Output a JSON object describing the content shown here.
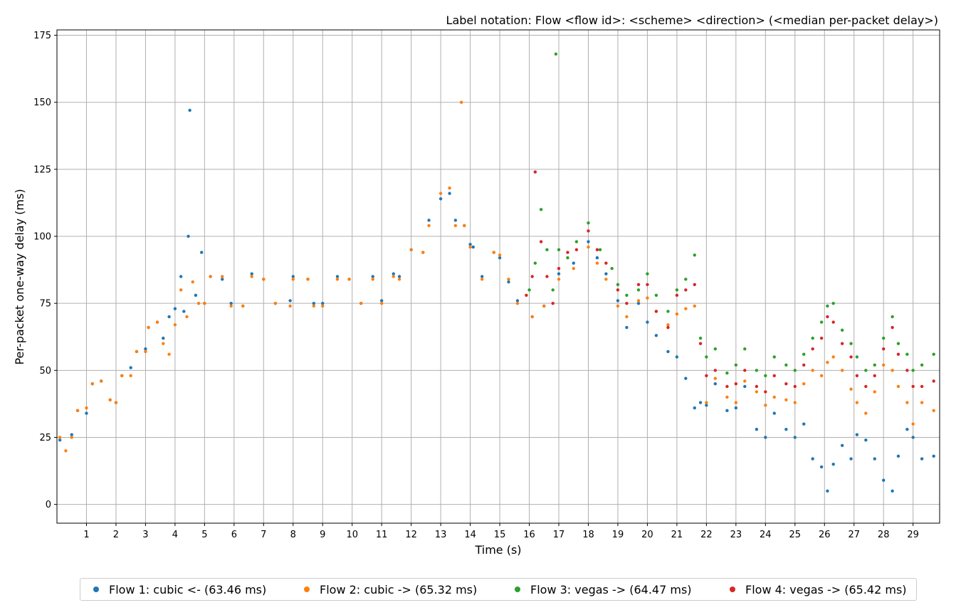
{
  "chart_data": {
    "type": "scatter",
    "title": "Label notation: Flow <flow id>: <scheme> <direction> (<median per-packet delay>)",
    "xlabel": "Time (s)",
    "ylabel": "Per-packet one-way delay (ms)",
    "xlim": [
      0,
      29.9
    ],
    "ylim": [
      -7,
      177
    ],
    "x_ticks": [
      1,
      2,
      3,
      4,
      5,
      6,
      7,
      8,
      9,
      10,
      11,
      12,
      13,
      14,
      15,
      16,
      17,
      18,
      19,
      20,
      21,
      22,
      23,
      24,
      25,
      26,
      27,
      28,
      29
    ],
    "y_ticks": [
      0,
      25,
      50,
      75,
      100,
      125,
      150,
      175
    ],
    "grid": true,
    "legend_position": "bottom",
    "series": [
      {
        "name": "Flow 1: cubic <- (63.46 ms)",
        "color": "#1f77b4",
        "points": [
          [
            0.1,
            24
          ],
          [
            0.5,
            26
          ],
          [
            0.7,
            35
          ],
          [
            1.0,
            34
          ],
          [
            1.2,
            45
          ],
          [
            1.5,
            46
          ],
          [
            1.8,
            39
          ],
          [
            2.0,
            38
          ],
          [
            2.2,
            48
          ],
          [
            2.5,
            51
          ],
          [
            2.7,
            57
          ],
          [
            3.0,
            58
          ],
          [
            3.1,
            66
          ],
          [
            3.4,
            68
          ],
          [
            3.6,
            62
          ],
          [
            3.8,
            70
          ],
          [
            4.0,
            73
          ],
          [
            4.2,
            85
          ],
          [
            4.3,
            72
          ],
          [
            4.45,
            100
          ],
          [
            4.5,
            147
          ],
          [
            4.7,
            78
          ],
          [
            4.9,
            94
          ],
          [
            5.0,
            75
          ],
          [
            5.2,
            85
          ],
          [
            5.6,
            84
          ],
          [
            5.9,
            75
          ],
          [
            6.3,
            74
          ],
          [
            6.6,
            86
          ],
          [
            7.0,
            84
          ],
          [
            7.4,
            75
          ],
          [
            7.9,
            76
          ],
          [
            8.0,
            85
          ],
          [
            8.5,
            84
          ],
          [
            8.7,
            75
          ],
          [
            9.0,
            75
          ],
          [
            9.5,
            85
          ],
          [
            9.9,
            84
          ],
          [
            10.3,
            75
          ],
          [
            10.7,
            85
          ],
          [
            11.0,
            76
          ],
          [
            11.4,
            86
          ],
          [
            11.6,
            85
          ],
          [
            12.0,
            95
          ],
          [
            12.4,
            94
          ],
          [
            12.6,
            106
          ],
          [
            13.0,
            114
          ],
          [
            13.3,
            116
          ],
          [
            13.5,
            106
          ],
          [
            13.8,
            104
          ],
          [
            14.0,
            97
          ],
          [
            14.1,
            96
          ],
          [
            14.4,
            85
          ],
          [
            14.8,
            94
          ],
          [
            15.0,
            92
          ],
          [
            15.3,
            83
          ],
          [
            15.6,
            76
          ],
          [
            16.1,
            70
          ],
          [
            16.5,
            74
          ],
          [
            17.0,
            86
          ],
          [
            17.5,
            90
          ],
          [
            18.0,
            98
          ],
          [
            18.3,
            92
          ],
          [
            18.6,
            86
          ],
          [
            19.0,
            76
          ],
          [
            19.3,
            66
          ],
          [
            19.7,
            75
          ],
          [
            20.0,
            68
          ],
          [
            20.3,
            63
          ],
          [
            20.7,
            57
          ],
          [
            21.0,
            55
          ],
          [
            21.3,
            47
          ],
          [
            21.6,
            36
          ],
          [
            21.8,
            38
          ],
          [
            22.0,
            37
          ],
          [
            22.3,
            45
          ],
          [
            22.7,
            35
          ],
          [
            23.0,
            36
          ],
          [
            23.3,
            44
          ],
          [
            23.7,
            28
          ],
          [
            24.0,
            25
          ],
          [
            24.3,
            34
          ],
          [
            24.7,
            28
          ],
          [
            25.0,
            25
          ],
          [
            25.3,
            30
          ],
          [
            25.6,
            17
          ],
          [
            25.9,
            14
          ],
          [
            26.1,
            5
          ],
          [
            26.3,
            15
          ],
          [
            26.6,
            22
          ],
          [
            26.9,
            17
          ],
          [
            27.1,
            26
          ],
          [
            27.4,
            24
          ],
          [
            27.7,
            17
          ],
          [
            28.0,
            9
          ],
          [
            28.3,
            5
          ],
          [
            28.5,
            18
          ],
          [
            28.8,
            28
          ],
          [
            29.0,
            25
          ],
          [
            29.3,
            17
          ],
          [
            29.7,
            18
          ]
        ]
      },
      {
        "name": "Flow 2: cubic -> (65.32 ms)",
        "color": "#ff7f0e",
        "points": [
          [
            0.1,
            25
          ],
          [
            0.3,
            20
          ],
          [
            0.5,
            25
          ],
          [
            0.7,
            35
          ],
          [
            1.0,
            36
          ],
          [
            1.2,
            45
          ],
          [
            1.5,
            46
          ],
          [
            1.8,
            39
          ],
          [
            2.0,
            38
          ],
          [
            2.2,
            48
          ],
          [
            2.5,
            48
          ],
          [
            2.7,
            57
          ],
          [
            3.0,
            57
          ],
          [
            3.1,
            66
          ],
          [
            3.4,
            68
          ],
          [
            3.6,
            60
          ],
          [
            3.8,
            56
          ],
          [
            4.0,
            67
          ],
          [
            4.2,
            80
          ],
          [
            4.4,
            70
          ],
          [
            4.6,
            83
          ],
          [
            4.8,
            75
          ],
          [
            5.0,
            75
          ],
          [
            5.2,
            85
          ],
          [
            5.6,
            85
          ],
          [
            5.9,
            74
          ],
          [
            6.3,
            74
          ],
          [
            6.6,
            85
          ],
          [
            7.0,
            84
          ],
          [
            7.4,
            75
          ],
          [
            7.9,
            74
          ],
          [
            8.0,
            84
          ],
          [
            8.5,
            84
          ],
          [
            8.7,
            74
          ],
          [
            9.0,
            74
          ],
          [
            9.5,
            84
          ],
          [
            9.9,
            84
          ],
          [
            10.3,
            75
          ],
          [
            10.7,
            84
          ],
          [
            11.0,
            75
          ],
          [
            11.4,
            85
          ],
          [
            11.6,
            84
          ],
          [
            12.0,
            95
          ],
          [
            12.4,
            94
          ],
          [
            12.6,
            104
          ],
          [
            13.0,
            116
          ],
          [
            13.3,
            118
          ],
          [
            13.5,
            104
          ],
          [
            13.7,
            150
          ],
          [
            13.8,
            104
          ],
          [
            14.0,
            96
          ],
          [
            14.4,
            84
          ],
          [
            14.8,
            94
          ],
          [
            15.0,
            93
          ],
          [
            15.3,
            84
          ],
          [
            15.6,
            75
          ],
          [
            16.1,
            70
          ],
          [
            16.5,
            74
          ],
          [
            17.0,
            84
          ],
          [
            17.5,
            88
          ],
          [
            18.0,
            96
          ],
          [
            18.3,
            90
          ],
          [
            18.6,
            84
          ],
          [
            19.0,
            74
          ],
          [
            19.3,
            70
          ],
          [
            19.7,
            76
          ],
          [
            20.0,
            77
          ],
          [
            20.3,
            72
          ],
          [
            20.7,
            67
          ],
          [
            21.0,
            71
          ],
          [
            21.3,
            73
          ],
          [
            21.6,
            74
          ],
          [
            22.0,
            38
          ],
          [
            22.3,
            47
          ],
          [
            22.7,
            40
          ],
          [
            23.0,
            38
          ],
          [
            23.3,
            46
          ],
          [
            23.7,
            42
          ],
          [
            24.0,
            37
          ],
          [
            24.3,
            40
          ],
          [
            24.7,
            39
          ],
          [
            25.0,
            38
          ],
          [
            25.3,
            45
          ],
          [
            25.6,
            50
          ],
          [
            25.9,
            48
          ],
          [
            26.1,
            53
          ],
          [
            26.3,
            55
          ],
          [
            26.6,
            50
          ],
          [
            26.9,
            43
          ],
          [
            27.1,
            38
          ],
          [
            27.4,
            34
          ],
          [
            27.7,
            42
          ],
          [
            28.0,
            52
          ],
          [
            28.3,
            50
          ],
          [
            28.5,
            44
          ],
          [
            28.8,
            38
          ],
          [
            29.0,
            30
          ],
          [
            29.3,
            38
          ],
          [
            29.7,
            35
          ]
        ]
      },
      {
        "name": "Flow 3: vegas -> (64.47 ms)",
        "color": "#2ca02c",
        "points": [
          [
            16.0,
            80
          ],
          [
            16.2,
            90
          ],
          [
            16.4,
            110
          ],
          [
            16.6,
            95
          ],
          [
            16.8,
            80
          ],
          [
            16.9,
            168
          ],
          [
            17.0,
            95
          ],
          [
            17.3,
            92
          ],
          [
            17.6,
            98
          ],
          [
            18.0,
            105
          ],
          [
            18.4,
            95
          ],
          [
            18.8,
            88
          ],
          [
            19.0,
            82
          ],
          [
            19.3,
            78
          ],
          [
            19.7,
            80
          ],
          [
            20.0,
            86
          ],
          [
            20.3,
            78
          ],
          [
            20.7,
            72
          ],
          [
            21.0,
            80
          ],
          [
            21.3,
            84
          ],
          [
            21.6,
            93
          ],
          [
            21.8,
            62
          ],
          [
            22.0,
            55
          ],
          [
            22.3,
            58
          ],
          [
            22.7,
            49
          ],
          [
            23.0,
            52
          ],
          [
            23.3,
            58
          ],
          [
            23.7,
            50
          ],
          [
            24.0,
            48
          ],
          [
            24.3,
            55
          ],
          [
            24.7,
            52
          ],
          [
            25.0,
            50
          ],
          [
            25.3,
            56
          ],
          [
            25.6,
            62
          ],
          [
            25.9,
            68
          ],
          [
            26.1,
            74
          ],
          [
            26.3,
            75
          ],
          [
            26.6,
            65
          ],
          [
            26.9,
            60
          ],
          [
            27.1,
            55
          ],
          [
            27.4,
            50
          ],
          [
            27.7,
            52
          ],
          [
            28.0,
            62
          ],
          [
            28.3,
            70
          ],
          [
            28.5,
            60
          ],
          [
            28.8,
            56
          ],
          [
            29.0,
            50
          ],
          [
            29.3,
            52
          ],
          [
            29.7,
            56
          ]
        ]
      },
      {
        "name": "Flow 4: vegas -> (65.42 ms)",
        "color": "#d62728",
        "points": [
          [
            15.9,
            78
          ],
          [
            16.1,
            85
          ],
          [
            16.2,
            124
          ],
          [
            16.4,
            98
          ],
          [
            16.6,
            85
          ],
          [
            16.8,
            75
          ],
          [
            17.0,
            88
          ],
          [
            17.3,
            94
          ],
          [
            17.6,
            95
          ],
          [
            18.0,
            102
          ],
          [
            18.3,
            95
          ],
          [
            18.6,
            90
          ],
          [
            19.0,
            80
          ],
          [
            19.3,
            75
          ],
          [
            19.7,
            82
          ],
          [
            20.0,
            82
          ],
          [
            20.3,
            72
          ],
          [
            20.7,
            66
          ],
          [
            21.0,
            78
          ],
          [
            21.3,
            80
          ],
          [
            21.6,
            82
          ],
          [
            21.8,
            60
          ],
          [
            22.0,
            48
          ],
          [
            22.3,
            50
          ],
          [
            22.7,
            44
          ],
          [
            23.0,
            45
          ],
          [
            23.3,
            50
          ],
          [
            23.7,
            44
          ],
          [
            24.0,
            42
          ],
          [
            24.3,
            48
          ],
          [
            24.7,
            45
          ],
          [
            25.0,
            44
          ],
          [
            25.3,
            52
          ],
          [
            25.6,
            58
          ],
          [
            25.9,
            62
          ],
          [
            26.1,
            70
          ],
          [
            26.3,
            68
          ],
          [
            26.6,
            60
          ],
          [
            26.9,
            55
          ],
          [
            27.1,
            48
          ],
          [
            27.4,
            44
          ],
          [
            27.7,
            48
          ],
          [
            28.0,
            58
          ],
          [
            28.3,
            66
          ],
          [
            28.5,
            56
          ],
          [
            28.8,
            50
          ],
          [
            29.0,
            44
          ],
          [
            29.3,
            44
          ],
          [
            29.7,
            46
          ]
        ]
      }
    ]
  },
  "legend": {
    "items": [
      {
        "label": "Flow 1: cubic <- (63.46 ms)",
        "color": "#1f77b4"
      },
      {
        "label": "Flow 2: cubic -> (65.32 ms)",
        "color": "#ff7f0e"
      },
      {
        "label": "Flow 3: vegas -> (64.47 ms)",
        "color": "#2ca02c"
      },
      {
        "label": "Flow 4: vegas -> (65.42 ms)",
        "color": "#d62728"
      }
    ]
  }
}
